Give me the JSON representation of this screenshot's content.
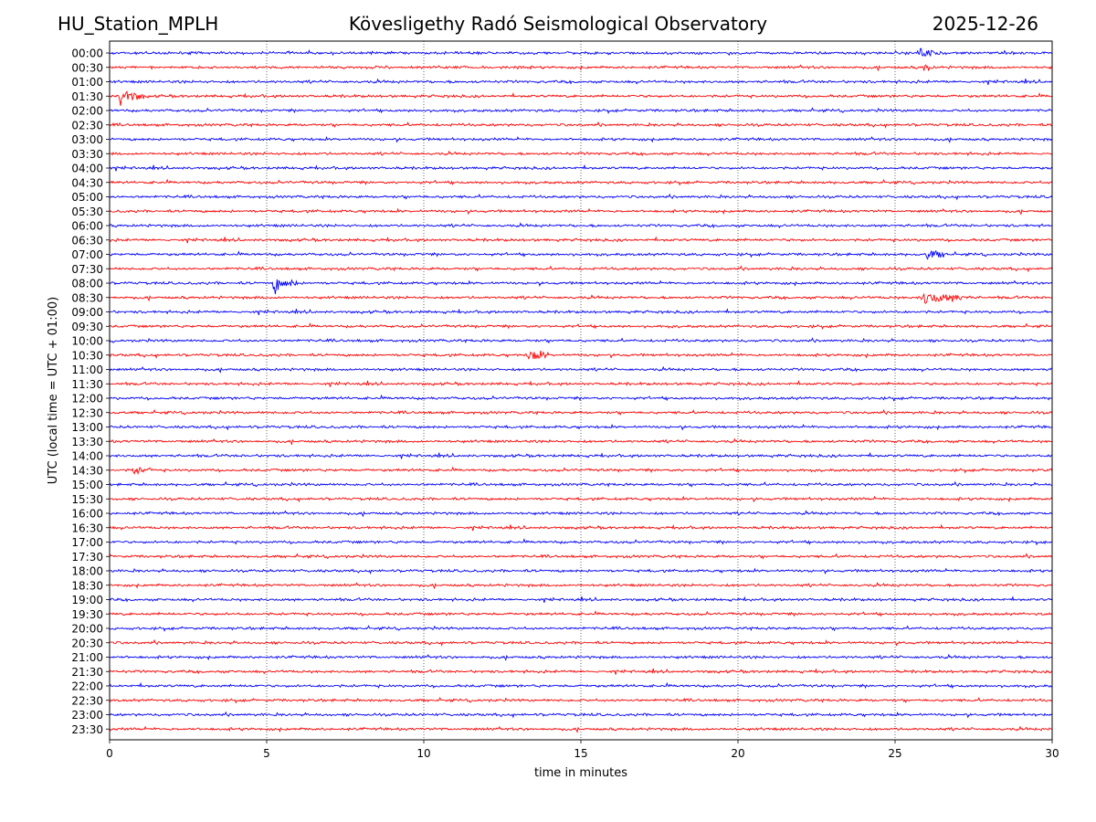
{
  "header": {
    "station": "HU_Station_MPLH",
    "title": "Kövesligethy Radó Seismological Observatory",
    "date": "2025-12-26"
  },
  "chart_data": {
    "type": "line",
    "title": "Kövesligethy Radó Seismological Observatory",
    "xlabel": "time in minutes",
    "ylabel": "UTC (local time = UTC + 01:00)",
    "xlim": [
      0,
      30
    ],
    "xticks": [
      0,
      5,
      10,
      15,
      20,
      25,
      30
    ],
    "grid": "vertical dotted lines at 5-minute ticks",
    "trace_colors": [
      "#0000ff",
      "#ff0000"
    ],
    "row_labels": [
      "00:00",
      "00:30",
      "01:00",
      "01:30",
      "02:00",
      "02:30",
      "03:00",
      "03:30",
      "04:00",
      "04:30",
      "05:00",
      "05:30",
      "06:00",
      "06:30",
      "07:00",
      "07:30",
      "08:00",
      "08:30",
      "09:00",
      "09:30",
      "10:00",
      "10:30",
      "11:00",
      "11:30",
      "12:00",
      "12:30",
      "13:00",
      "13:30",
      "14:00",
      "14:30",
      "15:00",
      "15:30",
      "16:00",
      "16:30",
      "17:00",
      "17:30",
      "18:00",
      "18:30",
      "19:00",
      "19:30",
      "20:00",
      "20:30",
      "21:00",
      "21:30",
      "22:00",
      "22:30",
      "23:00",
      "23:30"
    ],
    "events": [
      {
        "row": "00:00",
        "start_min": 25.7,
        "end_min": 26.6,
        "amplitude": 3.5
      },
      {
        "row": "00:30",
        "start_min": 25.9,
        "end_min": 26.2,
        "amplitude": 2.0
      },
      {
        "row": "01:30",
        "start_min": 0.3,
        "end_min": 1.1,
        "amplitude": 4.0
      },
      {
        "row": "07:00",
        "start_min": 26.0,
        "end_min": 26.7,
        "amplitude": 2.0
      },
      {
        "row": "08:00",
        "start_min": 5.2,
        "end_min": 6.0,
        "amplitude": 3.5
      },
      {
        "row": "08:30",
        "start_min": 25.8,
        "end_min": 27.4,
        "amplitude": 3.0
      },
      {
        "row": "10:30",
        "start_min": 13.3,
        "end_min": 14.0,
        "amplitude": 3.0
      },
      {
        "row": "14:30",
        "start_min": 0.7,
        "end_min": 1.3,
        "amplitude": 1.5
      }
    ]
  }
}
